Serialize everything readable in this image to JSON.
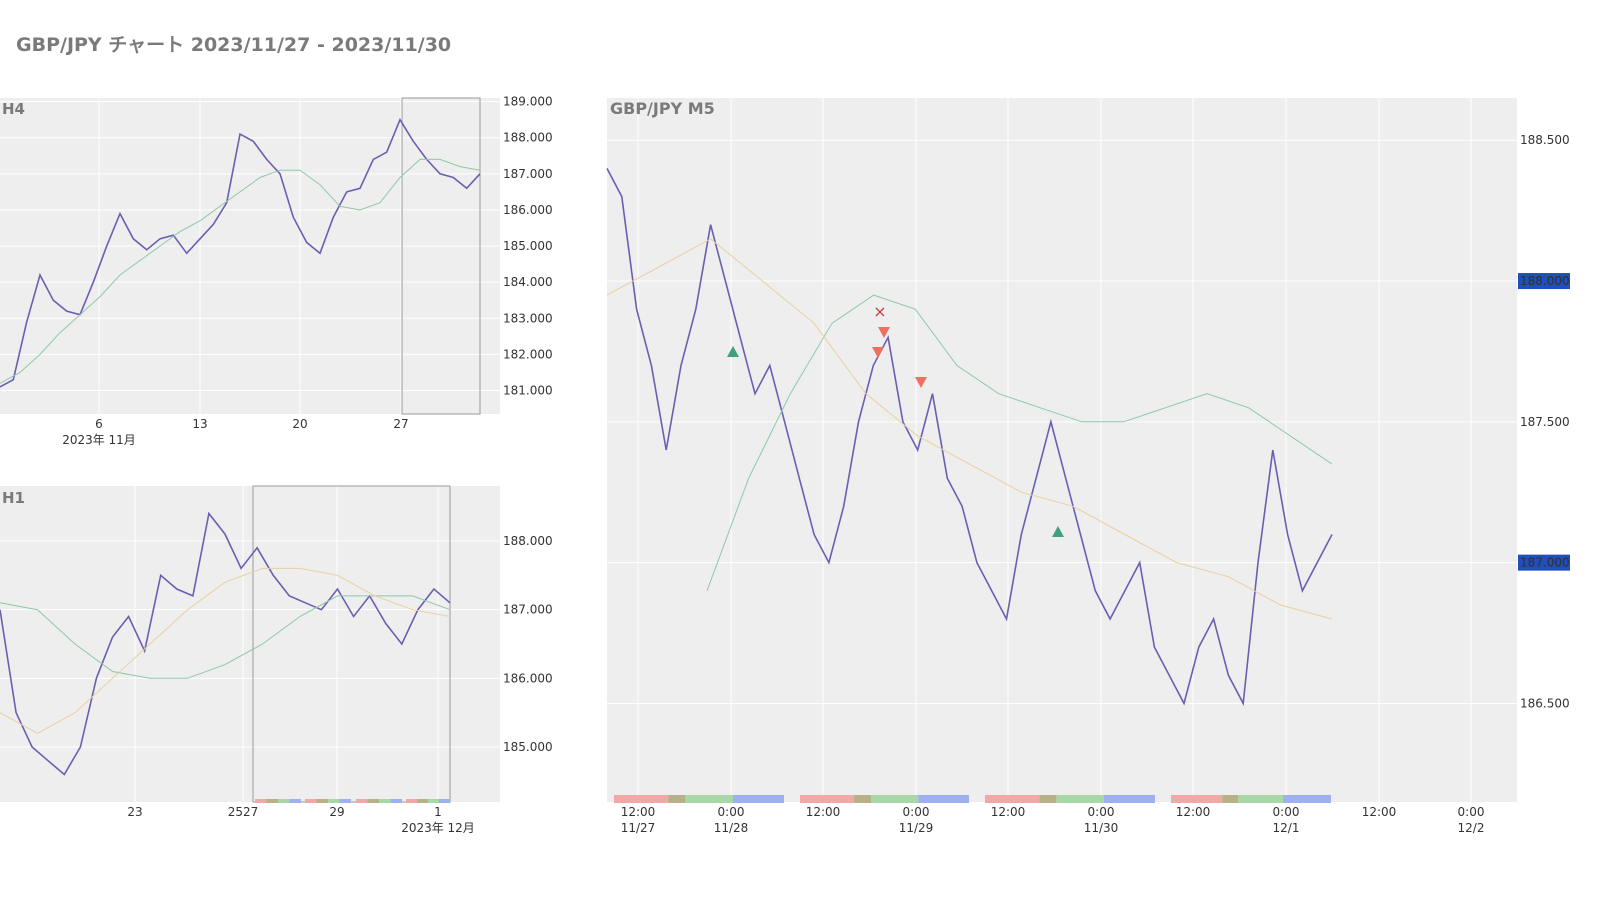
{
  "title": "GBP/JPY チャート 2023/11/27 - 2023/11/30",
  "chart_data": [
    {
      "type": "line",
      "title": "H4",
      "symbol": "GBP/JPY",
      "ylim": [
        180.35,
        189.1
      ],
      "yticks": [
        "189.000",
        "188.000",
        "187.000",
        "186.000",
        "185.000",
        "184.000",
        "183.000",
        "182.000",
        "181.000"
      ],
      "xticks": [
        "6",
        "13",
        "20",
        "27"
      ],
      "xsub": "2023年 11月",
      "series": [
        {
          "values": [
            181.1,
            181.3,
            182.9,
            184.2,
            183.5,
            183.2,
            183.1,
            184.0,
            185.0,
            185.9,
            185.2,
            184.9,
            185.2,
            185.3,
            184.8,
            185.2,
            185.6,
            186.2,
            188.1,
            187.9,
            187.4,
            187.0,
            185.8,
            185.1,
            184.8,
            185.8,
            186.5,
            186.6,
            187.4,
            187.6,
            188.5,
            187.9,
            187.4,
            187.0,
            186.9,
            186.6,
            187.0
          ]
        },
        {
          "values": [
            181.2,
            181.5,
            182.0,
            182.6,
            183.1,
            183.6,
            184.2,
            184.6,
            185.0,
            185.4,
            185.7,
            186.1,
            186.5,
            186.9,
            187.1,
            187.1,
            186.7,
            186.1,
            186.0,
            186.2,
            186.9,
            187.4,
            187.4,
            187.2,
            187.1
          ]
        }
      ],
      "colors": {
        "price": "#6a5fb0",
        "ma": "#8fc8a8"
      }
    },
    {
      "type": "line",
      "title": "H1",
      "symbol": "GBP/JPY",
      "ylim": [
        184.2,
        188.8
      ],
      "yticks": [
        "188.000",
        "187.000",
        "186.000",
        "185.000"
      ],
      "xticks": [
        "23",
        "2527",
        "29",
        "1"
      ],
      "xsub": "2023年 12月",
      "series": [
        {
          "values": [
            187.0,
            185.5,
            185.0,
            184.8,
            184.6,
            185.0,
            186.0,
            186.6,
            186.9,
            186.4,
            187.5,
            187.3,
            187.2,
            188.4,
            188.1,
            187.6,
            187.9,
            187.5,
            187.2,
            187.1,
            187.0,
            187.3,
            186.9,
            187.2,
            186.8,
            186.5,
            187.0,
            187.3,
            187.1
          ]
        },
        {
          "values": [
            187.1,
            187.0,
            186.5,
            186.1,
            186.0,
            186.0,
            186.2,
            186.5,
            186.9,
            187.2,
            187.2,
            187.2,
            187.0
          ]
        },
        {
          "values": [
            185.5,
            185.2,
            185.5,
            186.0,
            186.5,
            187.0,
            187.4,
            187.6,
            187.6,
            187.5,
            187.2,
            187.0,
            186.9
          ]
        }
      ],
      "colors": {
        "price": "#6a5fb0",
        "ma": "#8fc8a8",
        "ma2": "#e8d0a0"
      }
    },
    {
      "type": "line",
      "title": "GBP/JPY M5",
      "symbol": "GBP/JPY",
      "ylim": [
        186.15,
        188.65
      ],
      "yticks": [
        "188.500",
        "188.000",
        "187.500",
        "187.000",
        "186.500"
      ],
      "markers": [
        "188.000",
        "187.000"
      ],
      "xticks": [
        {
          "t": "12:00",
          "d": "11/27"
        },
        {
          "t": "0:00",
          "d": "11/28"
        },
        {
          "t": "12:00",
          "d": ""
        },
        {
          "t": "0:00",
          "d": "11/29"
        },
        {
          "t": "12:00",
          "d": ""
        },
        {
          "t": "0:00",
          "d": "11/30"
        },
        {
          "t": "12:00",
          "d": ""
        },
        {
          "t": "0:00",
          "d": "12/1"
        },
        {
          "t": "12:00",
          "d": ""
        },
        {
          "t": "0:00",
          "d": "12/2"
        }
      ],
      "series": [
        {
          "values": [
            188.4,
            188.3,
            187.9,
            187.7,
            187.4,
            187.7,
            187.9,
            188.2,
            188.0,
            187.8,
            187.6,
            187.7,
            187.5,
            187.3,
            187.1,
            187.0,
            187.2,
            187.5,
            187.7,
            187.8,
            187.5,
            187.4,
            187.6,
            187.3,
            187.2,
            187.0,
            186.9,
            186.8,
            187.1,
            187.3,
            187.5,
            187.3,
            187.1,
            186.9,
            186.8,
            186.9,
            187.0,
            186.7,
            186.6,
            186.5,
            186.7,
            186.8,
            186.6,
            186.5,
            187.0,
            187.4,
            187.1,
            186.9,
            187.0,
            187.1
          ]
        },
        {
          "values": [
            186.9,
            187.3,
            187.6,
            187.85,
            187.95,
            187.9,
            187.7,
            187.6,
            187.55,
            187.5,
            187.5,
            187.55,
            187.6,
            187.55,
            187.45,
            187.35
          ]
        },
        {
          "values": [
            187.95,
            188.05,
            188.15,
            188.0,
            187.85,
            187.6,
            187.45,
            187.35,
            187.25,
            187.2,
            187.1,
            187.0,
            186.95,
            186.85,
            186.8
          ]
        }
      ],
      "colors": {
        "price": "#6a5fb0",
        "ma": "#8fc8a8",
        "ma2": "#e8d0a0",
        "sell": "#f07060",
        "buy": "#40a080",
        "exit": "#e8a030",
        "marker_bg": "#1f4fbf"
      }
    }
  ]
}
